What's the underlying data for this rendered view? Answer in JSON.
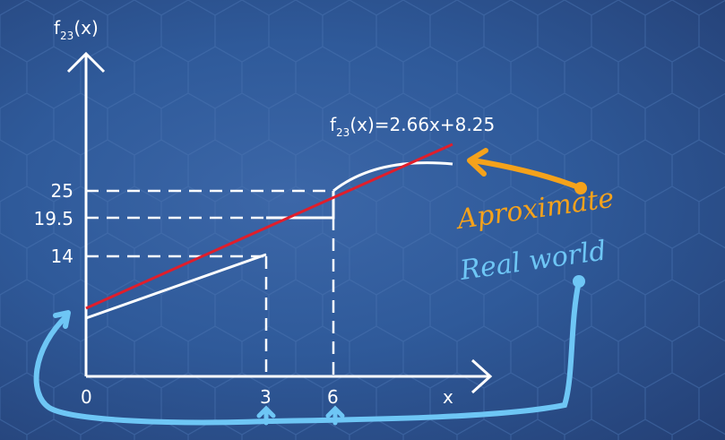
{
  "axes": {
    "y_label_main": "f",
    "y_label_sub": "23",
    "y_label_tail": "(x)",
    "x_label": "x"
  },
  "x_ticks": [
    "0",
    "3",
    "6"
  ],
  "y_ticks": [
    "25",
    "19.5",
    "14"
  ],
  "equation": {
    "main": "f",
    "sub": "23",
    "tail": "(x)=2.66x+8.25"
  },
  "annotations": {
    "approximate": "Aproximate",
    "real_world": "Real world"
  },
  "colors": {
    "line": "#ffffff",
    "fit_line": "#e01e2b",
    "orange": "#f5a21b",
    "blue_hand": "#6ec6f5"
  }
}
